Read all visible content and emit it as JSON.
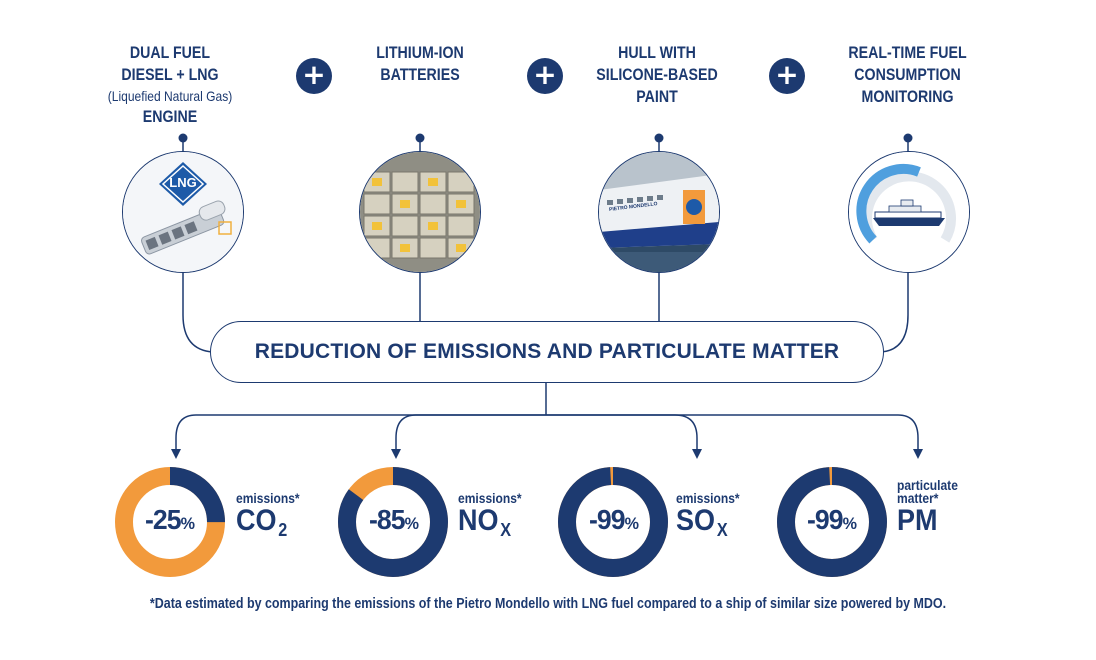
{
  "features": [
    {
      "lines": [
        "DUAL FUEL",
        "DIESEL + LNG"
      ],
      "sub": "(Liquefied Natural Gas)",
      "last": "ENGINE",
      "image_label": "LNG"
    },
    {
      "lines": [
        "LITHIUM-ION",
        "BATTERIES"
      ]
    },
    {
      "lines": [
        "HULL WITH",
        "SILICONE-BASED",
        "PAINT"
      ],
      "image_label": "PIETRO MONDELLO"
    },
    {
      "lines": [
        "REAL-TIME FUEL",
        "CONSUMPTION",
        "MONITORING"
      ]
    }
  ],
  "plus_symbol": "+",
  "result": "REDUCTION OF EMISSIONS AND PARTICULATE MATTER",
  "reductions": [
    {
      "value": "-25",
      "unit": "%",
      "fraction": 0.25,
      "caption": "emissions*",
      "pollutant": "CO",
      "subscript": "2"
    },
    {
      "value": "-85",
      "unit": "%",
      "fraction": 0.85,
      "caption": "emissions*",
      "pollutant": "NO",
      "subscript": "X"
    },
    {
      "value": "-99",
      "unit": "%",
      "fraction": 0.99,
      "caption": "emissions*",
      "pollutant": "SO",
      "subscript": "X"
    },
    {
      "value": "-99",
      "unit": "%",
      "fraction": 0.99,
      "caption_lines": [
        "particulate",
        "matter*"
      ],
      "pollutant": "PM"
    }
  ],
  "colors": {
    "navy": "#1d3a70",
    "orange": "#f29a3c"
  },
  "footnote": "*Data estimated by comparing the emissions of the Pietro Mondello with LNG fuel compared to a ship of similar size powered by MDO."
}
